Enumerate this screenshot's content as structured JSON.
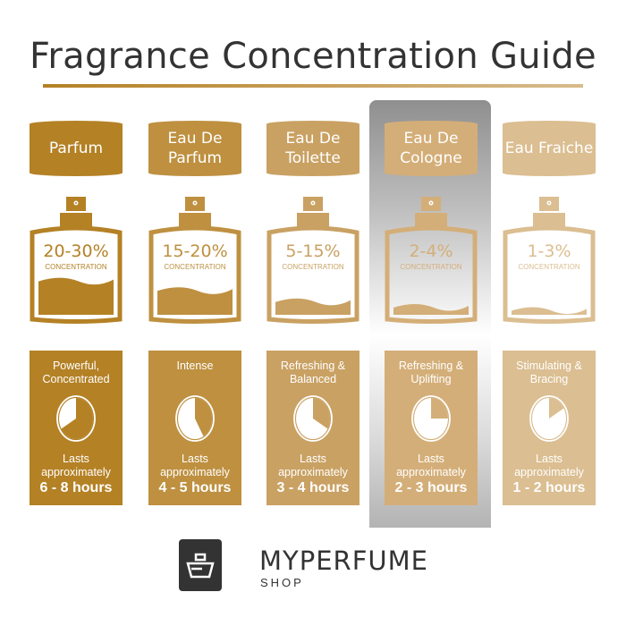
{
  "title": "Fragrance Concentration Guide",
  "concentration_label": "CONCENTRATION",
  "lasts_label": "Lasts approximately",
  "highlighted_index": 3,
  "types": [
    {
      "name": "Parfum",
      "concentration": "20-30%",
      "description": "Powerful, Concentrated",
      "hours": "6 - 8 hours",
      "max_hours": 8,
      "fill_level": 0.42,
      "color": "#b48125"
    },
    {
      "name": "Eau De Parfum",
      "concentration": "15-20%",
      "description": "Intense",
      "hours": "4 - 5 hours",
      "max_hours": 5,
      "fill_level": 0.3,
      "color": "#be9040"
    },
    {
      "name": "Eau De Toilette",
      "concentration": "5-15%",
      "description": "Refreshing & Balanced",
      "hours": "3 - 4 hours",
      "max_hours": 4,
      "fill_level": 0.16,
      "color": "#c9a163"
    },
    {
      "name": "Eau De Cologne",
      "concentration": "2-4%",
      "description": "Refreshing & Uplifting",
      "hours": "2 - 3 hours",
      "max_hours": 3,
      "fill_level": 0.09,
      "color": "#d4ae78"
    },
    {
      "name": "Eau Fraiche",
      "concentration": "1-3%",
      "description": "Stimulating & Bracing",
      "hours": "1 - 2 hours",
      "max_hours": 2,
      "fill_level": 0.05,
      "color": "#dbbe91"
    }
  ],
  "logo": {
    "brand": "MYPERFUME",
    "sub": "SHOP"
  }
}
